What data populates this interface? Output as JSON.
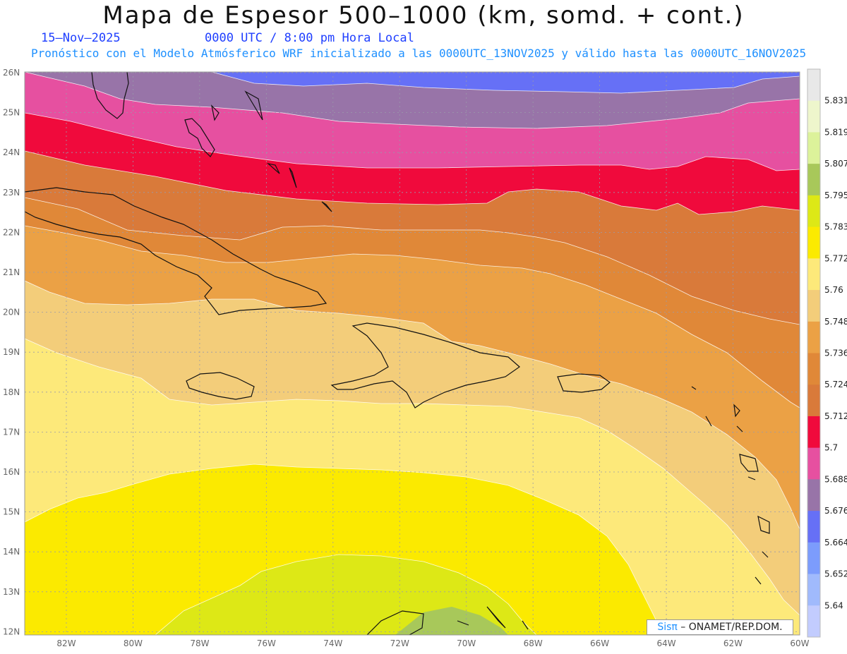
{
  "header": {
    "title": "Mapa de Espesor 500–1000 (km, somd. + cont.)",
    "date": "15–Nov–2025",
    "time": "0000 UTC / 8:00 pm Hora Local",
    "subtitle": "Pronóstico con el Modelo Atmósferico WRF inicializado a las 0000UTC_13NOV2025 y válido hasta las  0000UTC_16NOV2025"
  },
  "axes": {
    "lon_labels": [
      "82W",
      "80W",
      "78W",
      "76W",
      "74W",
      "72W",
      "70W",
      "68W",
      "66W",
      "64W",
      "62W",
      "60W"
    ],
    "lat_labels": [
      "26N",
      "25N",
      "24N",
      "23N",
      "22N",
      "21N",
      "20N",
      "19N",
      "18N",
      "17N",
      "16N",
      "15N",
      "14N",
      "13N",
      "12N"
    ]
  },
  "colorbar": {
    "levels": [
      "5.831",
      "5.819",
      "5.807",
      "5.795",
      "5.783",
      "5.772",
      "5.76",
      "5.748",
      "5.736",
      "5.724",
      "5.712",
      "5.7",
      "5.688",
      "5.676",
      "5.664",
      "5.652",
      "5.64"
    ],
    "colors": [
      "#e8e8e8",
      "#eef6cc",
      "#dcf29a",
      "#a8c85a",
      "#dde816",
      "#fbea00",
      "#fde97a",
      "#f3cd7a",
      "#eba145",
      "#e08838",
      "#d97a3a",
      "#f00a3c",
      "#e650a0",
      "#9874a8",
      "#6670f6",
      "#7c9cfc",
      "#a0bafc",
      "#c2ccfe"
    ]
  },
  "map": {
    "band_colors": {
      "b5664": "#6670f6",
      "b5676": "#9874a8",
      "b5688": "#e650a0",
      "b5700": "#f00a3c",
      "b5712": "#d97a3a",
      "b5724": "#e08838",
      "b5736": "#eba145",
      "b5748": "#f3cd7a",
      "b5760": "#fde97a",
      "b5772": "#fbea00",
      "b5783": "#dde816",
      "b5795": "#a8c85a"
    }
  },
  "credit": {
    "brand": "Sisπ",
    "org": " – ONAMET/REP.DOM."
  }
}
